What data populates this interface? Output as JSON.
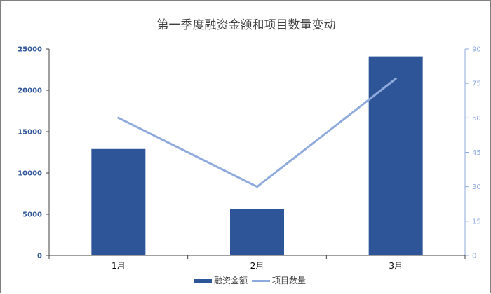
{
  "chart_data": {
    "type": "bar+line",
    "title": "第一季度融资金额和项目数量变动",
    "categories": [
      "1月",
      "2月",
      "3月"
    ],
    "series": [
      {
        "name": "融资金额",
        "type": "bar",
        "axis": "left",
        "color": "#2E5597",
        "values": [
          12900,
          5600,
          24100
        ]
      },
      {
        "name": "项目数量",
        "type": "line",
        "axis": "right",
        "color": "#8FAADC",
        "values": [
          60,
          30,
          77
        ]
      }
    ],
    "y_left": {
      "min": 0,
      "max": 25000,
      "ticks": [
        0,
        5000,
        10000,
        15000,
        20000,
        25000
      ],
      "color": "#2E5597"
    },
    "y_right": {
      "min": 0,
      "max": 90,
      "ticks": [
        0,
        15,
        30,
        45,
        60,
        75,
        90
      ],
      "color": "#8FAADC"
    },
    "grid": false,
    "legend": "bottom-center"
  }
}
